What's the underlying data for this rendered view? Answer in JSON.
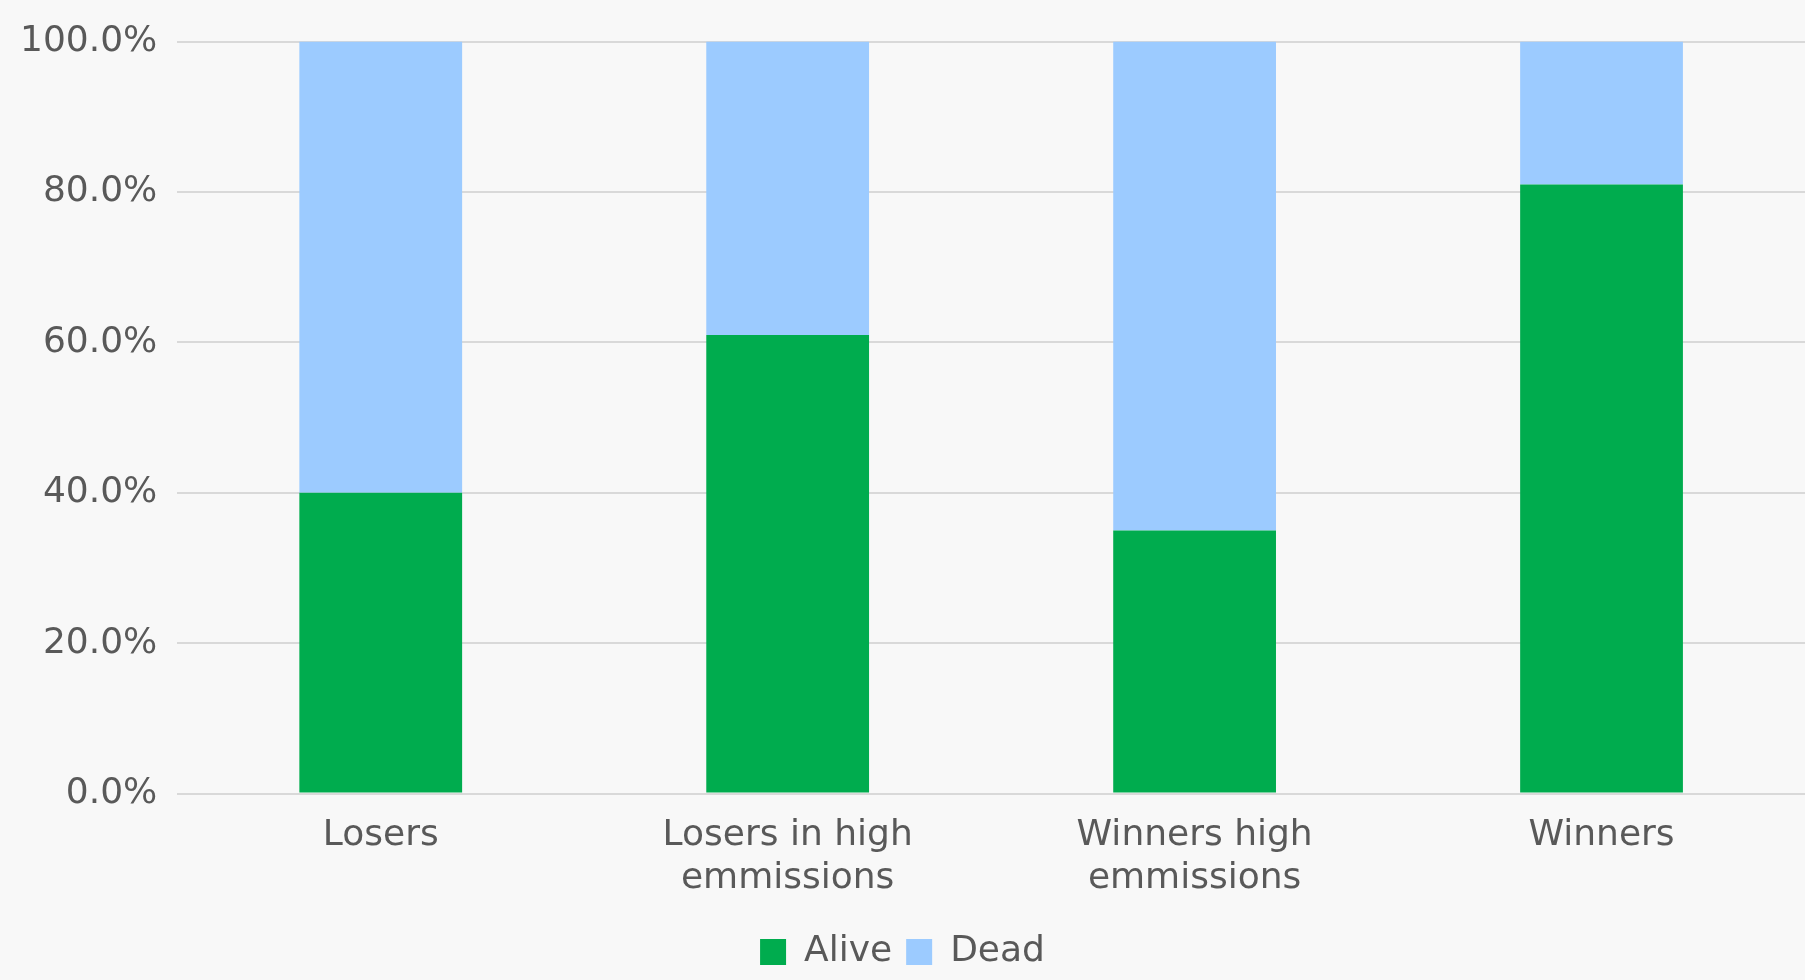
{
  "chart_data": {
    "type": "bar",
    "stacked": true,
    "categories": [
      "Losers",
      "Losers in high emmissions",
      "Winners high emmissions",
      "Winners"
    ],
    "series": [
      {
        "name": "Alive",
        "color": "#00ac4e",
        "values": [
          40,
          61,
          35,
          81
        ]
      },
      {
        "name": "Dead",
        "color": "#9ccbff",
        "values": [
          60,
          39,
          65,
          19
        ]
      }
    ],
    "ylim": [
      0,
      100
    ],
    "yticks": [
      {
        "value": 0,
        "label": "0.0%"
      },
      {
        "value": 20,
        "label": "20.0%"
      },
      {
        "value": 40,
        "label": "40.0%"
      },
      {
        "value": 60,
        "label": "60.0%"
      },
      {
        "value": 80,
        "label": "80.0%"
      },
      {
        "value": 100,
        "label": "100.0%"
      }
    ],
    "grid": "y",
    "legend": "bottom"
  }
}
